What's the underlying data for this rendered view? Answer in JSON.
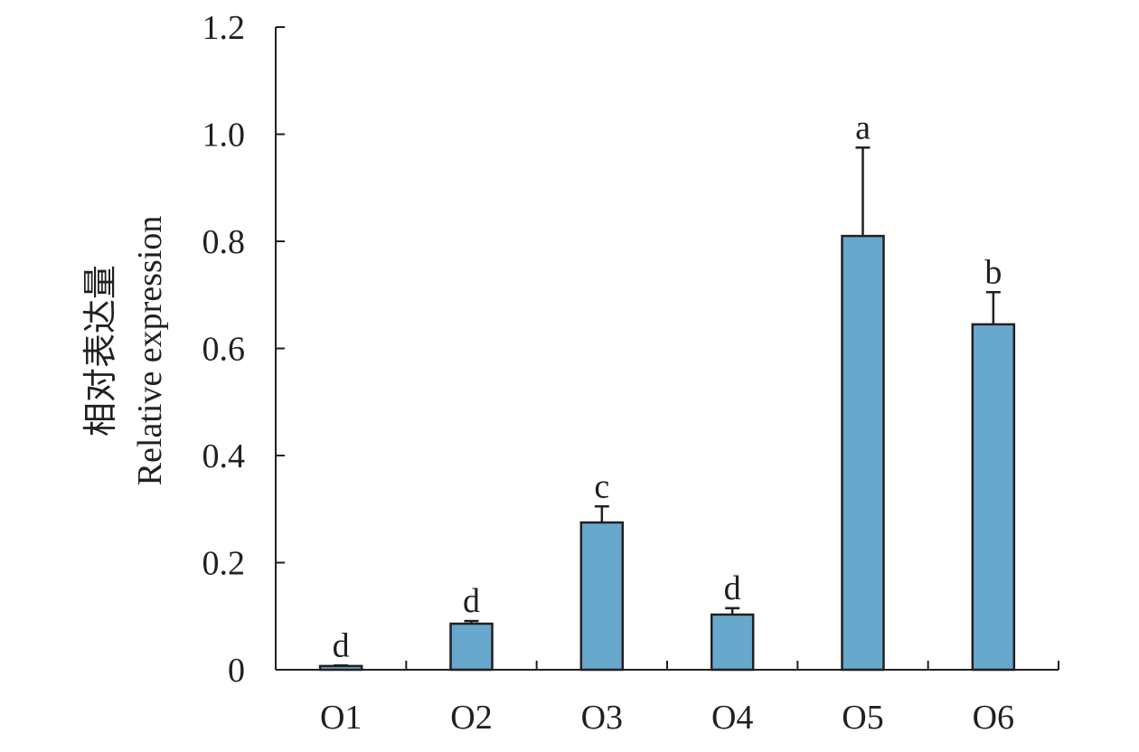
{
  "chart_data": {
    "type": "bar",
    "categories": [
      "O1",
      "O2",
      "O3",
      "O4",
      "O5",
      "O6"
    ],
    "values": [
      0.007,
      0.086,
      0.275,
      0.103,
      0.81,
      0.645
    ],
    "error": [
      0.001,
      0.005,
      0.03,
      0.012,
      0.165,
      0.06
    ],
    "significance_letters": [
      "d",
      "d",
      "c",
      "d",
      "a",
      "b"
    ],
    "ylabel_cn": "相对表达量",
    "ylabel_en": "Relative expression",
    "xlabel": "",
    "title": "",
    "ylim": [
      0,
      1.2
    ],
    "yticks": [
      0,
      0.2,
      0.4,
      0.6,
      0.8,
      1.0,
      1.2
    ],
    "ytick_labels": [
      "0",
      "0.2",
      "0.4",
      "0.6",
      "0.8",
      "1.0",
      "1.2"
    ],
    "grid": false,
    "legend": "none",
    "bar_color": "#68a8cc",
    "edge_color": "#231f20"
  }
}
